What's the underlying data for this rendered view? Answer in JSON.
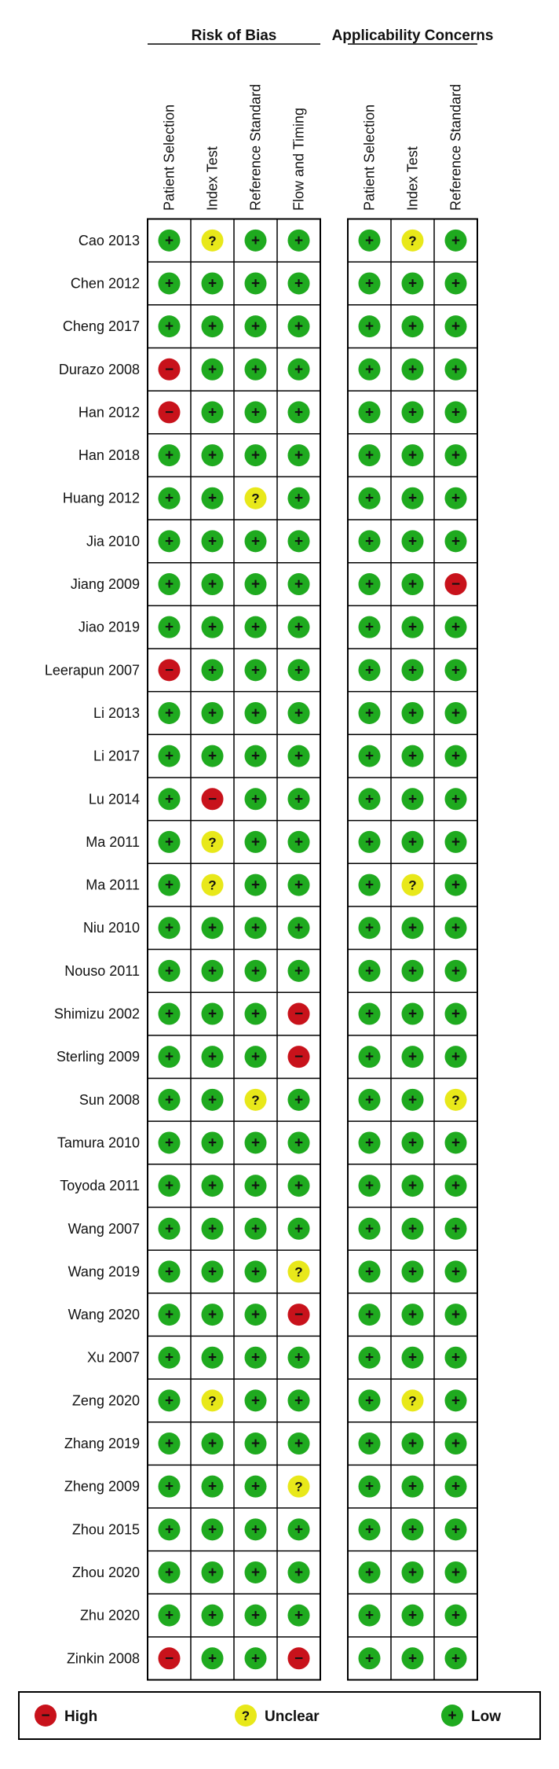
{
  "chart_data": {
    "type": "table",
    "domains": [
      {
        "title": "Risk of Bias",
        "columns": [
          "Patient Selection",
          "Index Test",
          "Reference Standard",
          "Flow and Timing"
        ]
      },
      {
        "title": "Applicability Concerns",
        "columns": [
          "Patient Selection",
          "Index Test",
          "Reference Standard"
        ]
      }
    ],
    "studies": [
      {
        "name": "Cao 2013",
        "risk": [
          "low",
          "unclear",
          "low",
          "low"
        ],
        "applicability": [
          "low",
          "unclear",
          "low"
        ]
      },
      {
        "name": "Chen 2012",
        "risk": [
          "low",
          "low",
          "low",
          "low"
        ],
        "applicability": [
          "low",
          "low",
          "low"
        ]
      },
      {
        "name": "Cheng 2017",
        "risk": [
          "low",
          "low",
          "low",
          "low"
        ],
        "applicability": [
          "low",
          "low",
          "low"
        ]
      },
      {
        "name": "Durazo 2008",
        "risk": [
          "high",
          "low",
          "low",
          "low"
        ],
        "applicability": [
          "low",
          "low",
          "low"
        ]
      },
      {
        "name": "Han 2012",
        "risk": [
          "high",
          "low",
          "low",
          "low"
        ],
        "applicability": [
          "low",
          "low",
          "low"
        ]
      },
      {
        "name": "Han 2018",
        "risk": [
          "low",
          "low",
          "low",
          "low"
        ],
        "applicability": [
          "low",
          "low",
          "low"
        ]
      },
      {
        "name": "Huang 2012",
        "risk": [
          "low",
          "low",
          "unclear",
          "low"
        ],
        "applicability": [
          "low",
          "low",
          "low"
        ]
      },
      {
        "name": "Jia 2010",
        "risk": [
          "low",
          "low",
          "low",
          "low"
        ],
        "applicability": [
          "low",
          "low",
          "low"
        ]
      },
      {
        "name": "Jiang 2009",
        "risk": [
          "low",
          "low",
          "low",
          "low"
        ],
        "applicability": [
          "low",
          "low",
          "high"
        ]
      },
      {
        "name": "Jiao 2019",
        "risk": [
          "low",
          "low",
          "low",
          "low"
        ],
        "applicability": [
          "low",
          "low",
          "low"
        ]
      },
      {
        "name": "Leerapun 2007",
        "risk": [
          "high",
          "low",
          "low",
          "low"
        ],
        "applicability": [
          "low",
          "low",
          "low"
        ]
      },
      {
        "name": "Li  2013",
        "risk": [
          "low",
          "low",
          "low",
          "low"
        ],
        "applicability": [
          "low",
          "low",
          "low"
        ]
      },
      {
        "name": "Li 2017",
        "risk": [
          "low",
          "low",
          "low",
          "low"
        ],
        "applicability": [
          "low",
          "low",
          "low"
        ]
      },
      {
        "name": "Lu 2014",
        "risk": [
          "low",
          "high",
          "low",
          "low"
        ],
        "applicability": [
          "low",
          "low",
          "low"
        ]
      },
      {
        "name": "Ma 2011",
        "risk": [
          "low",
          "unclear",
          "low",
          "low"
        ],
        "applicability": [
          "low",
          "low",
          "low"
        ]
      },
      {
        "name": "Ma  2011",
        "risk": [
          "low",
          "unclear",
          "low",
          "low"
        ],
        "applicability": [
          "low",
          "unclear",
          "low"
        ]
      },
      {
        "name": "Niu 2010",
        "risk": [
          "low",
          "low",
          "low",
          "low"
        ],
        "applicability": [
          "low",
          "low",
          "low"
        ]
      },
      {
        "name": "Nouso 2011",
        "risk": [
          "low",
          "low",
          "low",
          "low"
        ],
        "applicability": [
          "low",
          "low",
          "low"
        ]
      },
      {
        "name": "Shimizu 2002",
        "risk": [
          "low",
          "low",
          "low",
          "high"
        ],
        "applicability": [
          "low",
          "low",
          "low"
        ]
      },
      {
        "name": "Sterling 2009",
        "risk": [
          "low",
          "low",
          "low",
          "high"
        ],
        "applicability": [
          "low",
          "low",
          "low"
        ]
      },
      {
        "name": "Sun 2008",
        "risk": [
          "low",
          "low",
          "unclear",
          "low"
        ],
        "applicability": [
          "low",
          "low",
          "unclear"
        ]
      },
      {
        "name": "Tamura 2010",
        "risk": [
          "low",
          "low",
          "low",
          "low"
        ],
        "applicability": [
          "low",
          "low",
          "low"
        ]
      },
      {
        "name": "Toyoda 2011",
        "risk": [
          "low",
          "low",
          "low",
          "low"
        ],
        "applicability": [
          "low",
          "low",
          "low"
        ]
      },
      {
        "name": "Wang 2007",
        "risk": [
          "low",
          "low",
          "low",
          "low"
        ],
        "applicability": [
          "low",
          "low",
          "low"
        ]
      },
      {
        "name": "Wang 2019",
        "risk": [
          "low",
          "low",
          "low",
          "unclear"
        ],
        "applicability": [
          "low",
          "low",
          "low"
        ]
      },
      {
        "name": "Wang 2020",
        "risk": [
          "low",
          "low",
          "low",
          "high"
        ],
        "applicability": [
          "low",
          "low",
          "low"
        ]
      },
      {
        "name": "Xu 2007",
        "risk": [
          "low",
          "low",
          "low",
          "low"
        ],
        "applicability": [
          "low",
          "low",
          "low"
        ]
      },
      {
        "name": "Zeng 2020",
        "risk": [
          "low",
          "unclear",
          "low",
          "low"
        ],
        "applicability": [
          "low",
          "unclear",
          "low"
        ]
      },
      {
        "name": "Zhang 2019",
        "risk": [
          "low",
          "low",
          "low",
          "low"
        ],
        "applicability": [
          "low",
          "low",
          "low"
        ]
      },
      {
        "name": "Zheng 2009",
        "risk": [
          "low",
          "low",
          "low",
          "unclear"
        ],
        "applicability": [
          "low",
          "low",
          "low"
        ]
      },
      {
        "name": "Zhou 2015",
        "risk": [
          "low",
          "low",
          "low",
          "low"
        ],
        "applicability": [
          "low",
          "low",
          "low"
        ]
      },
      {
        "name": "Zhou 2020",
        "risk": [
          "low",
          "low",
          "low",
          "low"
        ],
        "applicability": [
          "low",
          "low",
          "low"
        ]
      },
      {
        "name": "Zhu 2020",
        "risk": [
          "low",
          "low",
          "low",
          "low"
        ],
        "applicability": [
          "low",
          "low",
          "low"
        ]
      },
      {
        "name": "Zinkin 2008",
        "risk": [
          "high",
          "low",
          "low",
          "high"
        ],
        "applicability": [
          "low",
          "low",
          "low"
        ]
      }
    ],
    "legend": [
      {
        "key": "high",
        "label": "High",
        "symbol": "−",
        "color": "#c8121b"
      },
      {
        "key": "unclear",
        "label": "Unclear",
        "symbol": "?",
        "color": "#e8e81a"
      },
      {
        "key": "low",
        "label": "Low",
        "symbol": "+",
        "color": "#1faa1f"
      }
    ],
    "legend_placement": "bottom",
    "icons": {
      "high": "minus-circle-icon",
      "unclear": "question-circle-icon",
      "low": "plus-circle-icon"
    }
  }
}
